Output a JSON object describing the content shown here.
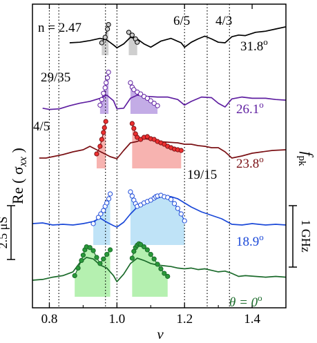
{
  "chart_data": {
    "type": "line",
    "title": "",
    "xlabel": "ν",
    "ylabel_left": "Re ( σ",
    "ylabel_left_sub": "xx",
    "ylabel_left_close": " )",
    "ylabel_right": "f",
    "ylabel_right_sub": "pk",
    "xlim": [
      0.75,
      1.5
    ],
    "xticks": [
      0.8,
      1.0,
      1.2,
      1.4
    ],
    "xtick_labels": [
      "0.8",
      "1.0",
      "1.2",
      "1.4"
    ],
    "grid": false,
    "vlines_dotted": [
      0.8,
      0.828,
      0.966,
      1.0,
      1.2,
      1.267,
      1.333
    ],
    "annotations": [
      {
        "text": "n = 2.47",
        "kind": "filling-factor"
      },
      {
        "text": "6/5",
        "kind": "fraction"
      },
      {
        "text": "4/3",
        "kind": "fraction"
      },
      {
        "text": "29/35",
        "kind": "fraction"
      },
      {
        "text": "4/5",
        "kind": "fraction"
      },
      {
        "text": "19/15",
        "kind": "fraction"
      }
    ],
    "scalebar_left": {
      "text": "2.5 μS"
    },
    "scalebar_right": {
      "text": "1 GHz"
    },
    "series": [
      {
        "name": "31.8°",
        "label": "31.8",
        "color": "#000000",
        "fill": "#cfcfcf",
        "marker_fill": "#cccccc",
        "nu": [
          0.86,
          0.89,
          0.92,
          0.95,
          0.97,
          0.99,
          1.0,
          1.02,
          1.04,
          1.06,
          1.08,
          1.1,
          1.13,
          1.16,
          1.19,
          1.2,
          1.22,
          1.24,
          1.26,
          1.28,
          1.3,
          1.32,
          1.34,
          1.36,
          1.38,
          1.41,
          1.44,
          1.47,
          1.5
        ],
        "sigma": [
          0.5,
          0.6,
          0.9,
          1.3,
          1.0,
          0.1,
          -0.4,
          0.3,
          1.5,
          1.2,
          0.3,
          -0.3,
          0.8,
          1.3,
          0.5,
          -0.3,
          0.6,
          1.2,
          1.7,
          1.2,
          0.6,
          0.5,
          1.6,
          1.9,
          1.8,
          2.4,
          2.6,
          3.0,
          3.4
        ],
        "fpk_left_nu": [
          0.955,
          0.965,
          0.972,
          0.975
        ],
        "fpk_left": [
          0.5,
          1.5,
          3.0,
          3.8
        ],
        "fpk_right_nu": [
          1.035,
          1.045,
          1.055,
          1.06
        ],
        "fpk_right": [
          2.4,
          1.9,
          1.2,
          0.6
        ]
      },
      {
        "name": "26.1°",
        "label": "26.1",
        "color": "#5e1ea0",
        "fill": "#c3ace6",
        "marker_fill": "#ffffff",
        "nu": [
          0.78,
          0.8,
          0.83,
          0.86,
          0.89,
          0.92,
          0.95,
          0.97,
          0.99,
          1.0,
          1.02,
          1.04,
          1.06,
          1.09,
          1.12,
          1.15,
          1.18,
          1.2,
          1.22,
          1.25,
          1.28,
          1.3,
          1.32,
          1.34,
          1.37,
          1.4,
          1.44,
          1.47,
          1.5
        ],
        "sigma": [
          -0.2,
          -0.4,
          -0.3,
          0.2,
          0.6,
          0.9,
          1.4,
          1.9,
          1.0,
          -0.3,
          -0.2,
          1.4,
          1.9,
          1.7,
          1.6,
          1.6,
          1.2,
          0.3,
          0.9,
          1.6,
          1.5,
          0.6,
          0.0,
          1.3,
          1.6,
          1.4,
          1.4,
          1.2,
          1.1
        ],
        "fpk_left_nu": [
          0.95,
          0.955,
          0.96,
          0.965,
          0.968,
          0.972,
          0.975
        ],
        "fpk_left": [
          0.3,
          1.2,
          2.2,
          3.1,
          3.9,
          4.7,
          5.6
        ],
        "fpk_right_nu": [
          1.04,
          1.045,
          1.05,
          1.06,
          1.07,
          1.08,
          1.09,
          1.1,
          1.11,
          1.12
        ],
        "fpk_right": [
          3.9,
          3.2,
          2.8,
          2.4,
          2.1,
          1.7,
          1.4,
          1.0,
          0.6,
          0.2
        ]
      },
      {
        "name": "23.8°",
        "label": "23.8",
        "color": "#7a1014",
        "fill": "#f7b3b0",
        "marker_fill": "#ee3030",
        "nu": [
          0.77,
          0.79,
          0.81,
          0.84,
          0.87,
          0.9,
          0.92,
          0.94,
          0.96,
          0.98,
          1.0,
          1.02,
          1.04,
          1.06,
          1.08,
          1.1,
          1.12,
          1.15,
          1.18,
          1.2,
          1.22,
          1.24,
          1.26,
          1.28,
          1.3,
          1.32,
          1.34,
          1.37,
          1.4,
          1.43,
          1.46,
          1.5
        ],
        "sigma": [
          -0.3,
          -0.3,
          -0.1,
          0.2,
          0.6,
          0.9,
          1.4,
          0.9,
          0.4,
          -0.1,
          -0.4,
          0.8,
          1.9,
          2.1,
          2.5,
          2.4,
          2.1,
          2.0,
          1.9,
          1.7,
          1.7,
          1.5,
          1.4,
          1.2,
          1.2,
          0.6,
          -0.3,
          0.0,
          0.4,
          0.6,
          0.8,
          0.9
        ],
        "fpk_left_nu": [
          0.94,
          0.95,
          0.955,
          0.96,
          0.963,
          0.967
        ],
        "fpk_left": [
          0.3,
          1.4,
          2.4,
          3.4,
          4.1,
          5.0
        ],
        "fpk_right_nu": [
          1.045,
          1.05,
          1.055,
          1.06,
          1.07,
          1.08,
          1.09,
          1.1,
          1.11,
          1.12,
          1.13,
          1.14,
          1.15,
          1.16,
          1.17,
          1.18,
          1.19
        ],
        "fpk_right": [
          4.7,
          4.0,
          3.2,
          2.7,
          2.4,
          2.7,
          2.8,
          2.5,
          2.4,
          2.1,
          1.9,
          1.7,
          1.4,
          1.2,
          1.0,
          0.9,
          0.8
        ]
      },
      {
        "name": "18.9°",
        "label": "18.9",
        "color": "#1a48d8",
        "fill": "#bfe3f7",
        "marker_fill": "#ffffff",
        "nu": [
          0.75,
          0.78,
          0.81,
          0.84,
          0.87,
          0.9,
          0.93,
          0.95,
          0.97,
          0.99,
          1.0,
          1.02,
          1.04,
          1.06,
          1.08,
          1.1,
          1.12,
          1.14,
          1.16,
          1.18,
          1.2,
          1.22,
          1.25,
          1.28,
          1.31,
          1.34,
          1.37,
          1.4,
          1.44,
          1.47,
          1.5
        ],
        "sigma": [
          0.6,
          0.7,
          0.4,
          0.5,
          0.4,
          0.6,
          0.9,
          1.4,
          0.8,
          0.3,
          0.1,
          0.8,
          2.0,
          3.0,
          3.4,
          3.9,
          4.3,
          4.6,
          4.5,
          4.2,
          3.6,
          3.0,
          2.3,
          1.8,
          1.3,
          0.5,
          0.4,
          0.6,
          0.4,
          0.5,
          0.4
        ],
        "fpk_left_nu": [
          0.93,
          0.945,
          0.952,
          0.96,
          0.965,
          0.97,
          0.976,
          0.98
        ],
        "fpk_left": [
          0.6,
          1.5,
          2.0,
          2.5,
          3.1,
          3.6,
          4.2,
          4.9
        ],
        "fpk_right_nu": [
          1.04,
          1.045,
          1.05,
          1.055,
          1.06,
          1.07,
          1.08,
          1.09,
          1.1,
          1.11,
          1.115,
          1.12,
          1.13,
          1.14,
          1.15,
          1.16,
          1.17,
          1.18,
          1.19,
          1.2
        ],
        "fpk_right": [
          5.2,
          4.6,
          4.0,
          3.5,
          3.1,
          3.3,
          3.6,
          3.8,
          4.0,
          4.3,
          4.5,
          4.6,
          4.7,
          4.5,
          4.4,
          4.1,
          3.5,
          2.8,
          2.0,
          1.0
        ]
      },
      {
        "name": "θ = 0°",
        "label": "θ = 0",
        "color": "#1a6a2a",
        "fill": "#b5f0b0",
        "marker_fill": "#2a9a3a",
        "nu": [
          0.75,
          0.78,
          0.81,
          0.84,
          0.87,
          0.89,
          0.91,
          0.93,
          0.95,
          0.97,
          0.99,
          1.0,
          1.02,
          1.04,
          1.06,
          1.08,
          1.1,
          1.12,
          1.14,
          1.16,
          1.18,
          1.2,
          1.22,
          1.24,
          1.26,
          1.28,
          1.3,
          1.32,
          1.34,
          1.36,
          1.38,
          1.41,
          1.44,
          1.47,
          1.5
        ],
        "sigma": [
          0.0,
          0.1,
          0.4,
          0.6,
          1.1,
          2.3,
          3.0,
          2.8,
          2.0,
          1.6,
          0.6,
          -0.2,
          0.8,
          2.2,
          2.9,
          2.6,
          2.2,
          2.0,
          1.9,
          1.8,
          1.6,
          1.5,
          1.6,
          1.4,
          1.5,
          1.3,
          1.1,
          1.2,
          0.9,
          0.5,
          0.6,
          0.5,
          0.4,
          0.5,
          0.4
        ],
        "fpk_left_nu": [
          0.875,
          0.885,
          0.895,
          0.9,
          0.905,
          0.91,
          0.92,
          0.93,
          0.94,
          0.95,
          0.96,
          0.97,
          0.98
        ],
        "fpk_left": [
          0.6,
          1.6,
          2.6,
          3.3,
          4.0,
          4.4,
          4.3,
          3.9,
          3.0,
          2.2,
          2.8,
          3.4,
          4.0
        ],
        "fpk_right_nu": [
          1.045,
          1.05,
          1.055,
          1.06,
          1.065,
          1.07,
          1.08,
          1.09,
          1.1,
          1.11,
          1.12,
          1.13,
          1.14,
          1.15
        ],
        "fpk_right": [
          2.9,
          3.8,
          4.3,
          4.6,
          4.8,
          4.7,
          4.4,
          4.0,
          3.4,
          2.8,
          2.1,
          1.5,
          0.9,
          0.5
        ]
      }
    ]
  }
}
